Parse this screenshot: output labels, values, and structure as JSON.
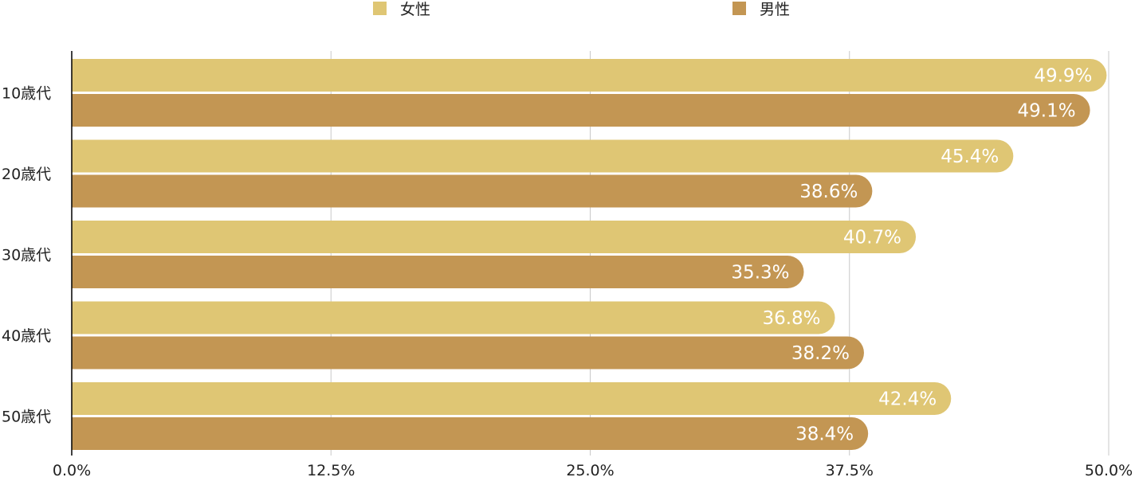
{
  "chart_data": {
    "type": "bar",
    "orientation": "horizontal",
    "title": "",
    "xlabel": "",
    "ylabel": "",
    "categories": [
      "10歳代",
      "20歳代",
      "30歳代",
      "40歳代",
      "50歳代"
    ],
    "series": [
      {
        "name": "女性",
        "color": "#DFC674",
        "values": [
          49.9,
          45.4,
          40.7,
          36.8,
          42.4
        ]
      },
      {
        "name": "男性",
        "color": "#C39653",
        "values": [
          49.1,
          38.6,
          35.3,
          38.2,
          38.4
        ]
      }
    ],
    "xlim": [
      0,
      50
    ],
    "xticks": [
      0,
      12.5,
      25,
      37.5,
      50
    ],
    "xtick_labels": [
      "0.0%",
      "12.5%",
      "25.0%",
      "37.5%",
      "50.0%"
    ],
    "value_suffix": "%",
    "grid": true,
    "legend_position": "top"
  }
}
